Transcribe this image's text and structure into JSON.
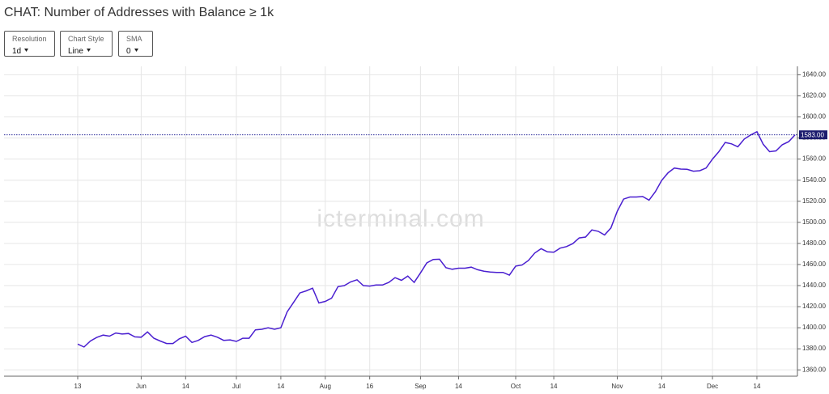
{
  "controls": [
    {
      "label": "Resolution",
      "value": "1d"
    },
    {
      "label": "Chart Style",
      "value": "Line"
    },
    {
      "label": "SMA",
      "value": "0"
    }
  ],
  "chart_data": {
    "type": "line",
    "title": "CHAT: Number of Addresses with Balance ≥ 1k",
    "watermark": "icterminal.com",
    "categories": [
      "13",
      null,
      null,
      null,
      null,
      null,
      null,
      null,
      null,
      null,
      "Jun",
      null,
      null,
      null,
      null,
      null,
      null,
      "14",
      null,
      null,
      null,
      null,
      null,
      null,
      null,
      "Jul",
      null,
      null,
      null,
      null,
      null,
      null,
      "14",
      null,
      null,
      null,
      null,
      null,
      null,
      "Aug",
      null,
      null,
      null,
      null,
      null,
      null,
      "16",
      null,
      null,
      null,
      null,
      null,
      null,
      null,
      "Sep",
      null,
      null,
      null,
      null,
      null,
      "14",
      null,
      null,
      null,
      null,
      null,
      null,
      null,
      null,
      "Oct",
      null,
      null,
      null,
      null,
      null,
      "14",
      null,
      null,
      null,
      null,
      null,
      null,
      null,
      null,
      null,
      "Nov",
      null,
      null,
      null,
      null,
      null,
      null,
      "14",
      null,
      null,
      null,
      null,
      null,
      null,
      null,
      "Dec",
      null,
      null,
      null,
      null,
      null,
      null,
      "14",
      null,
      null,
      null,
      null,
      null,
      null
    ],
    "series": [
      {
        "name": "Addresses",
        "color": "#4a1fd0",
        "values": [
          1384.5,
          1381.7,
          1387.4,
          1390.8,
          1393,
          1392,
          1395,
          1394,
          1394.5,
          1391.3,
          1391,
          1396,
          1390,
          1387.4,
          1385,
          1385,
          1389.5,
          1392,
          1386,
          1388,
          1391.5,
          1393,
          1391,
          1388,
          1388.5,
          1387,
          1390,
          1390,
          1398,
          1398.5,
          1400,
          1398.5,
          1400,
          1415,
          1424,
          1433,
          1435,
          1437.5,
          1423.5,
          1425,
          1428,
          1439,
          1440,
          1443.5,
          1445.5,
          1440,
          1439.5,
          1440.5,
          1440.5,
          1443,
          1447.5,
          1445,
          1449,
          1443,
          1452,
          1461.5,
          1464.8,
          1465,
          1457,
          1455.5,
          1456.5,
          1456.5,
          1457.5,
          1455,
          1453.6,
          1452.8,
          1452.5,
          1452.5,
          1449.9,
          1458.5,
          1459.5,
          1463.8,
          1470.8,
          1475,
          1472,
          1471.7,
          1475.5,
          1477,
          1479.8,
          1485.2,
          1486,
          1492.8,
          1491.5,
          1488,
          1494.6,
          1510.5,
          1522,
          1524,
          1524,
          1524.5,
          1521,
          1529,
          1539.8,
          1547,
          1551.5,
          1550.5,
          1550.3,
          1548.5,
          1549,
          1551.5,
          1560,
          1567,
          1575.8,
          1574.5,
          1571.7,
          1579,
          1582.8,
          1586,
          1574,
          1567,
          1567.8,
          1573.6,
          1576.5,
          1583
        ],
        "value_labels": [
          null,
          null,
          null,
          null,
          null,
          null,
          null,
          null,
          null,
          null,
          null,
          null,
          null,
          null,
          null,
          null,
          null,
          null,
          null,
          null,
          null,
          null,
          null,
          null,
          null,
          null,
          null,
          null,
          null,
          null,
          null,
          null,
          null,
          null,
          null,
          null,
          null,
          null,
          null,
          null,
          null,
          null,
          null,
          null,
          null,
          null,
          null,
          null,
          null,
          null,
          null,
          null,
          null,
          null,
          null,
          null,
          null,
          null,
          null,
          null,
          null,
          null,
          null,
          null,
          null,
          null,
          null,
          null,
          null,
          null,
          null,
          null,
          null,
          null,
          null,
          null,
          null,
          null,
          null,
          null,
          null,
          null,
          null,
          null,
          null,
          null,
          null,
          null,
          null,
          null,
          null,
          null,
          null,
          null,
          null,
          null,
          null,
          null,
          null,
          null,
          null,
          null,
          null,
          null,
          null,
          null,
          null,
          null,
          null,
          null,
          null,
          null,
          null,
          "1583.00"
        ]
      }
    ],
    "ylim": [
      1354,
      1648
    ],
    "yticks": [
      {
        "value": 1360,
        "label": "1360.00"
      },
      {
        "value": 1380,
        "label": "1380.00"
      },
      {
        "value": 1400,
        "label": "1400.00"
      },
      {
        "value": 1420,
        "label": "1420.00"
      },
      {
        "value": 1440,
        "label": "1440.00"
      },
      {
        "value": 1460,
        "label": "1460.00"
      },
      {
        "value": 1480,
        "label": "1480.00"
      },
      {
        "value": 1500,
        "label": "1500.00"
      },
      {
        "value": 1520,
        "label": "1520.00"
      },
      {
        "value": 1540,
        "label": "1540.00"
      },
      {
        "value": 1560,
        "label": "1560.00"
      },
      {
        "value": 1580,
        "label": "1580.00"
      },
      {
        "value": 1600,
        "label": "1600.00"
      },
      {
        "value": 1620,
        "label": "1620.00"
      },
      {
        "value": 1640,
        "label": "1640.00"
      }
    ],
    "grid": true,
    "y_axis_side": "right"
  }
}
